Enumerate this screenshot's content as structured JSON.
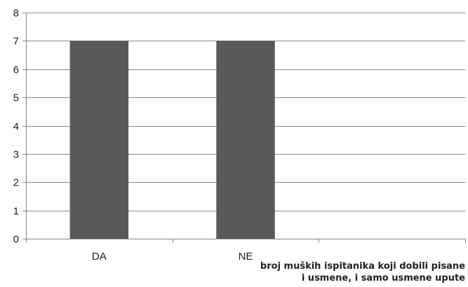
{
  "chart_data": {
    "type": "bar",
    "categories": [
      "DA",
      "NE",
      ""
    ],
    "values": [
      7,
      7,
      null
    ],
    "title": "",
    "xlabel_lines": [
      "broj muških ispitanika koji dobili pisane",
      "i usmene, i samo usmene upute"
    ],
    "ylabel": "",
    "ylim": [
      0,
      8
    ],
    "yticks": [
      "0",
      "1",
      "2",
      "3",
      "4",
      "5",
      "6",
      "7",
      "8"
    ],
    "grid": true,
    "legend": "none",
    "bar_color": "#595959",
    "grid_color": "#878787",
    "axis_color": "#878787"
  }
}
